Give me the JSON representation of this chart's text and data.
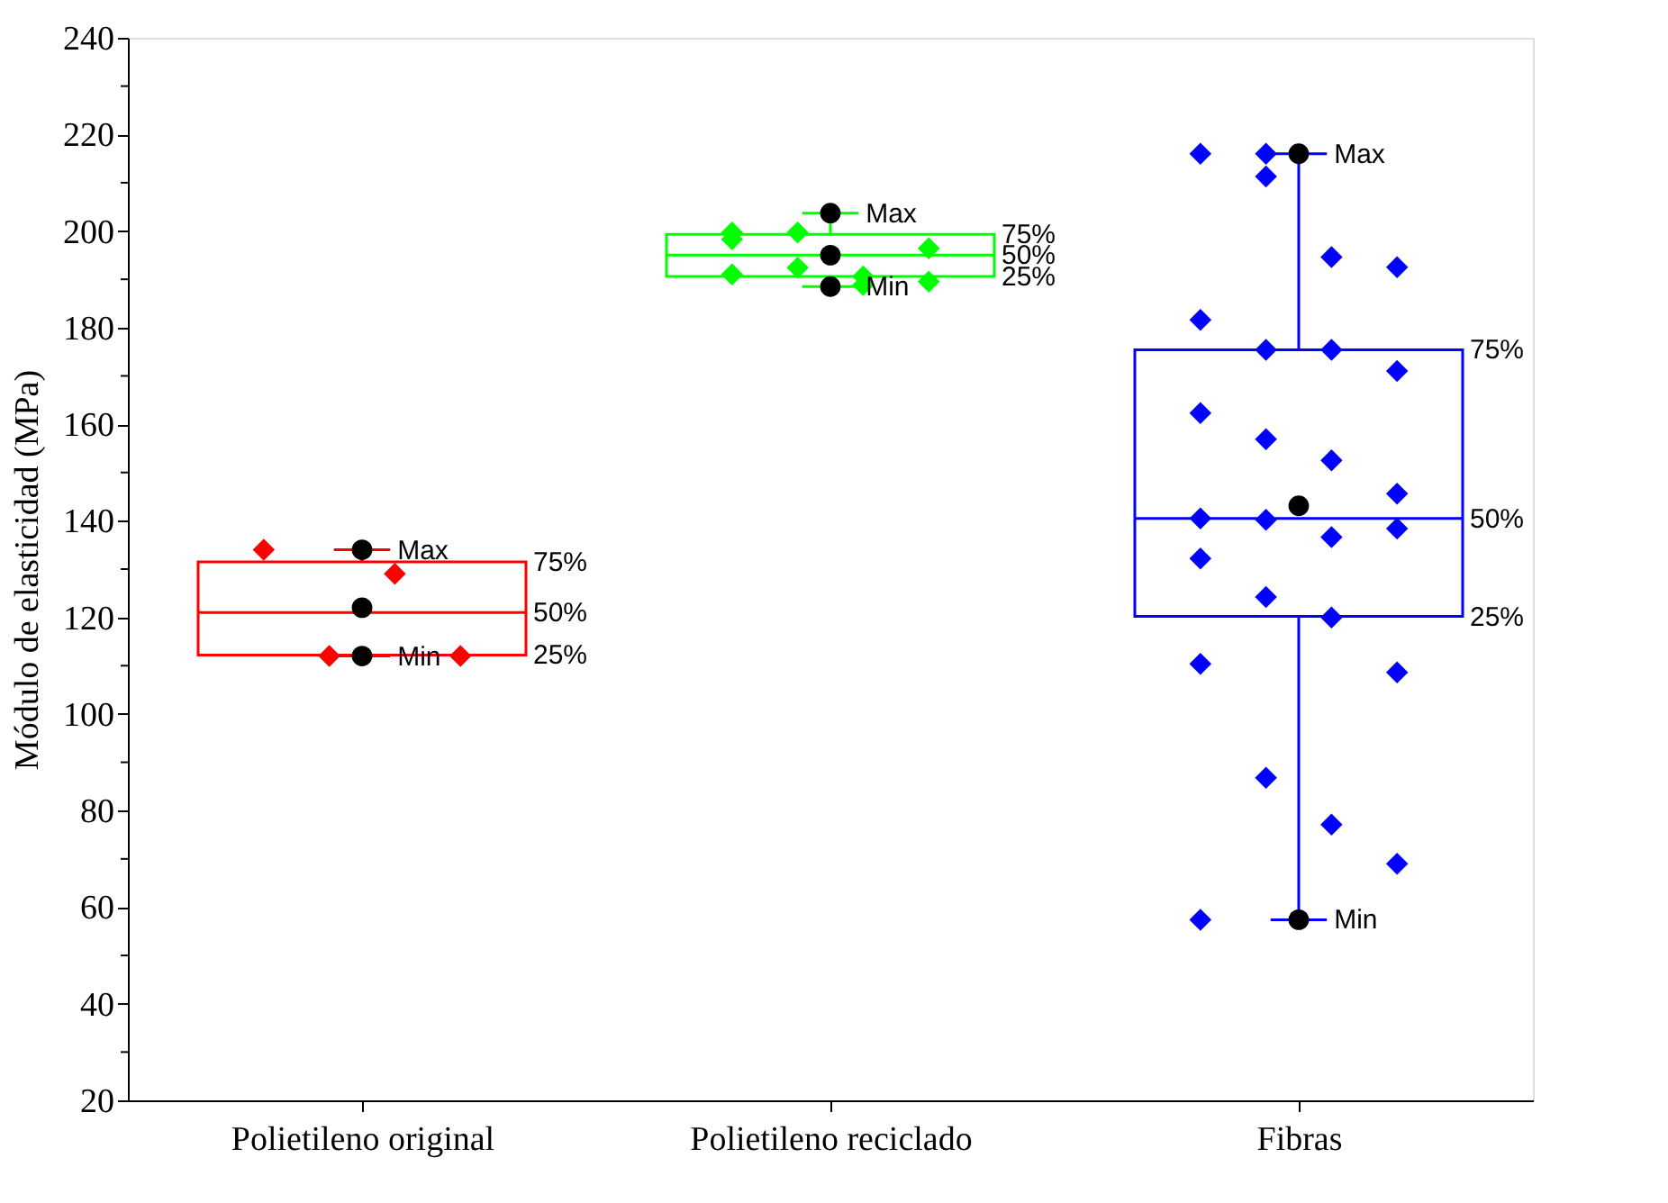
{
  "chart_data": {
    "type": "box",
    "ylabel": "Módulo de elasticidad (MPa)",
    "categories": [
      "Polietileno original",
      "Polietileno reciclado",
      "Fibras"
    ],
    "colors": [
      "#ff0000",
      "#00ff00",
      "#0000ff"
    ],
    "boxes": [
      {
        "low": 112,
        "q1": 112.2,
        "median": 121,
        "q3": 131.5,
        "high": 134,
        "mean": 122
      },
      {
        "low": 188.5,
        "q1": 190.6,
        "median": 195,
        "q3": 199.3,
        "high": 203.7,
        "mean": 195
      },
      {
        "low": 57.4,
        "q1": 120.2,
        "median": 140.5,
        "q3": 175.4,
        "high": 216,
        "mean": 143.1
      }
    ],
    "series": [
      {
        "type": "scatter",
        "color": "#ff0000",
        "marker": "diamond",
        "x": [
          "Polietileno original",
          "Polietileno original",
          "Polietileno original",
          "Polietileno original"
        ],
        "values": [
          134,
          112,
          129,
          112
        ]
      },
      {
        "type": "scatter",
        "color": "#00ff00",
        "marker": "diamond",
        "x": [
          "Polietileno reciclado",
          "Polietileno reciclado",
          "Polietileno reciclado",
          "Polietileno reciclado",
          "Polietileno reciclado",
          "Polietileno reciclado",
          "Polietileno reciclado",
          "Polietileno reciclado",
          "Polietileno reciclado"
        ],
        "values": [
          191,
          199.7,
          190.6,
          196.4,
          199.7,
          192.4,
          188.8,
          189.5,
          198.3
        ]
      },
      {
        "type": "scatter",
        "color": "#0000ff",
        "marker": "diamond",
        "x": [
          "Fibras",
          "Fibras",
          "Fibras",
          "Fibras",
          "Fibras",
          "Fibras",
          "Fibras",
          "Fibras",
          "Fibras",
          "Fibras",
          "Fibras",
          "Fibras",
          "Fibras",
          "Fibras",
          "Fibras",
          "Fibras",
          "Fibras",
          "Fibras",
          "Fibras",
          "Fibras",
          "Fibras",
          "Fibras",
          "Fibras",
          "Fibras",
          "Fibras",
          "Fibras"
        ],
        "values": [
          216,
          211.3,
          194.6,
          192.5,
          181.6,
          175.4,
          175.4,
          171,
          162.3,
          156.9,
          152.5,
          145.6,
          140.5,
          140.2,
          136.6,
          138.4,
          132.2,
          124.2,
          120,
          108.6,
          110.4,
          86.8,
          77.1,
          69,
          57.4,
          216
        ]
      }
    ],
    "annotations": [
      {
        "text": "Max",
        "x": "Polietileno original",
        "y": 134
      },
      {
        "text": "Min",
        "x": "Polietileno original",
        "y": 112
      },
      "75%",
      "50%",
      "25%",
      {
        "text": "Max",
        "x": "Polietileno reciclado",
        "y": 203.7
      },
      {
        "text": "Min",
        "x": "Polietileno reciclado",
        "y": 188.5
      },
      "75%",
      "50%",
      "25%",
      {
        "text": "Max",
        "x": "Fibras",
        "y": 216
      },
      {
        "text": "Min",
        "x": "Fibras",
        "y": 57.4
      },
      "75%",
      "50%",
      "25%"
    ],
    "ylim": [
      20,
      240
    ],
    "yticks": [
      20,
      {
        "value": 30,
        "label": null
      },
      40,
      {
        "value": 50,
        "label": null
      },
      60,
      {
        "value": 70,
        "label": null
      },
      80,
      {
        "value": 90,
        "label": null
      },
      100,
      {
        "value": 110,
        "label": null
      },
      120,
      {
        "value": 130,
        "label": null
      },
      140,
      {
        "value": 150,
        "label": null
      },
      160,
      {
        "value": 170,
        "label": null
      },
      180,
      {
        "value": 190,
        "label": null
      },
      200,
      {
        "value": 210,
        "label": null
      },
      220,
      {
        "value": 230,
        "label": null
      },
      240
    ],
    "grid": false,
    "legend": false
  }
}
